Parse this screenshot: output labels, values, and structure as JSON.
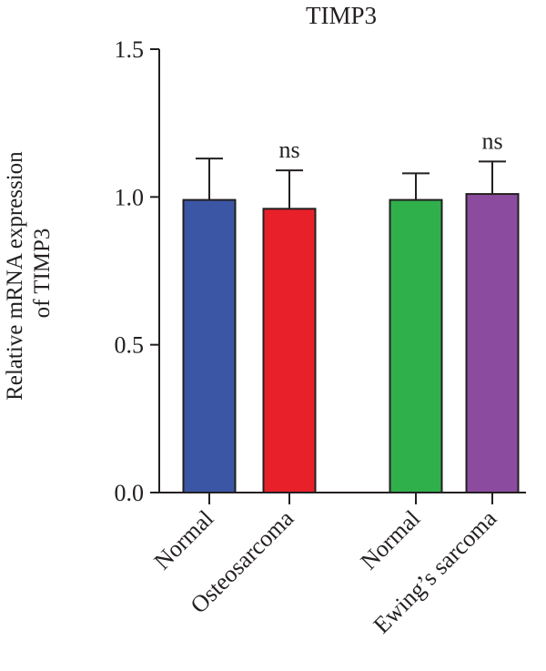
{
  "chart_data": {
    "type": "bar",
    "title": "TIMP3",
    "ylabel_line1": "Relative mRNA expression",
    "ylabel_line2": "of TIMP3",
    "xlabel": "",
    "ylim": [
      0,
      1.5
    ],
    "yticks": [
      {
        "value": 0,
        "label": "0.0"
      },
      {
        "value": 0.5,
        "label": "0.5"
      },
      {
        "value": 1.0,
        "label": "1.0"
      },
      {
        "value": 1.5,
        "label": "1.5"
      }
    ],
    "grid": false,
    "categories": [
      "Normal",
      "Osteosarcoma",
      "Normal",
      "Ewing’s sarcoma"
    ],
    "values": [
      0.99,
      0.96,
      0.99,
      1.01
    ],
    "errors": [
      0.14,
      0.13,
      0.09,
      0.11
    ],
    "annotations": [
      "",
      "ns",
      "",
      "ns"
    ],
    "colors": [
      "#3b56a4",
      "#e8202a",
      "#2fb04b",
      "#8b4c9f"
    ]
  }
}
